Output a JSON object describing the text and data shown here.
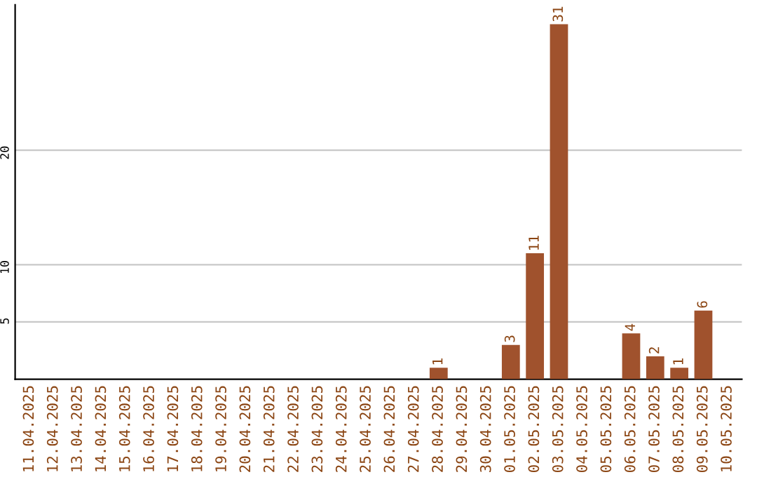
{
  "chart_data": {
    "type": "bar",
    "categories": [
      "11.04.2025",
      "12.04.2025",
      "13.04.2025",
      "14.04.2025",
      "15.04.2025",
      "16.04.2025",
      "17.04.2025",
      "18.04.2025",
      "19.04.2025",
      "20.04.2025",
      "21.04.2025",
      "22.04.2025",
      "23.04.2025",
      "24.04.2025",
      "25.04.2025",
      "26.04.2025",
      "27.04.2025",
      "28.04.2025",
      "29.04.2025",
      "30.04.2025",
      "01.05.2025",
      "02.05.2025",
      "03.05.2025",
      "04.05.2025",
      "05.05.2025",
      "06.05.2025",
      "07.05.2025",
      "08.05.2025",
      "09.05.2025",
      "10.05.2025"
    ],
    "values": [
      0,
      0,
      0,
      0,
      0,
      0,
      0,
      0,
      0,
      0,
      0,
      0,
      0,
      0,
      0,
      0,
      0,
      1,
      0,
      0,
      3,
      11,
      31,
      0,
      0,
      4,
      2,
      1,
      6,
      0
    ],
    "value_labels": [
      null,
      null,
      null,
      null,
      null,
      null,
      null,
      null,
      null,
      null,
      null,
      null,
      null,
      null,
      null,
      null,
      null,
      "1",
      null,
      null,
      "3",
      "11",
      "31",
      null,
      null,
      "4",
      "2",
      "1",
      "6",
      null
    ],
    "color": "#a0522d",
    "ylim": [
      0,
      32.7
    ],
    "yticks": [
      5,
      10,
      20
    ],
    "grid": "y"
  }
}
